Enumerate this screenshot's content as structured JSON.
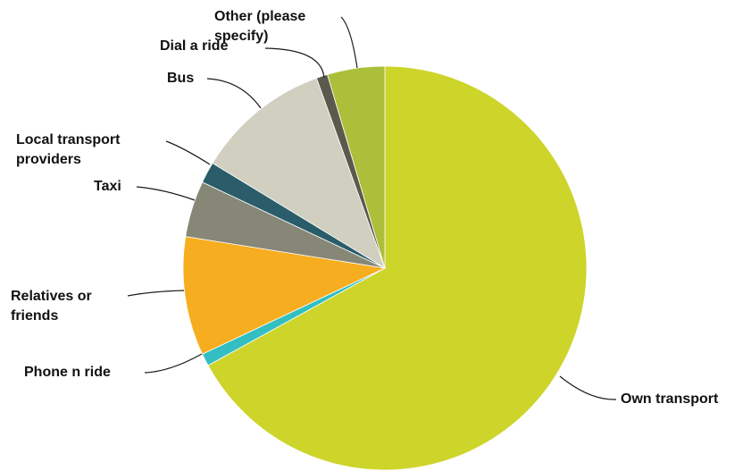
{
  "chart_data": {
    "type": "pie",
    "title": "",
    "legend": "none",
    "slices": [
      {
        "label": "Own transport",
        "value": 67.0,
        "color": "#cdd42a"
      },
      {
        "label": "Phone n ride",
        "value": 1.0,
        "color": "#33bfc1"
      },
      {
        "label": "Relatives or friends",
        "value": 9.5,
        "color": "#f6ad1f"
      },
      {
        "label": "Taxi",
        "value": 4.5,
        "color": "#878777"
      },
      {
        "label": "Local transport providers",
        "value": 1.7,
        "color": "#2a5c6a"
      },
      {
        "label": "Bus",
        "value": 10.8,
        "color": "#d0cfc0"
      },
      {
        "label": "Dial a ride",
        "value": 0.9,
        "color": "#5a5a4c"
      },
      {
        "label": "Other (please specify)",
        "value": 4.6,
        "color": "#abbf3a"
      }
    ],
    "label_lines": [
      [
        "Own transport"
      ],
      [
        "Phone n ride"
      ],
      [
        "Relatives or",
        "friends"
      ],
      [
        "Taxi"
      ],
      [
        "Local transport",
        "providers"
      ],
      [
        "Bus"
      ],
      [
        "Dial a ride"
      ],
      [
        "Other (please",
        "specify)"
      ]
    ]
  }
}
